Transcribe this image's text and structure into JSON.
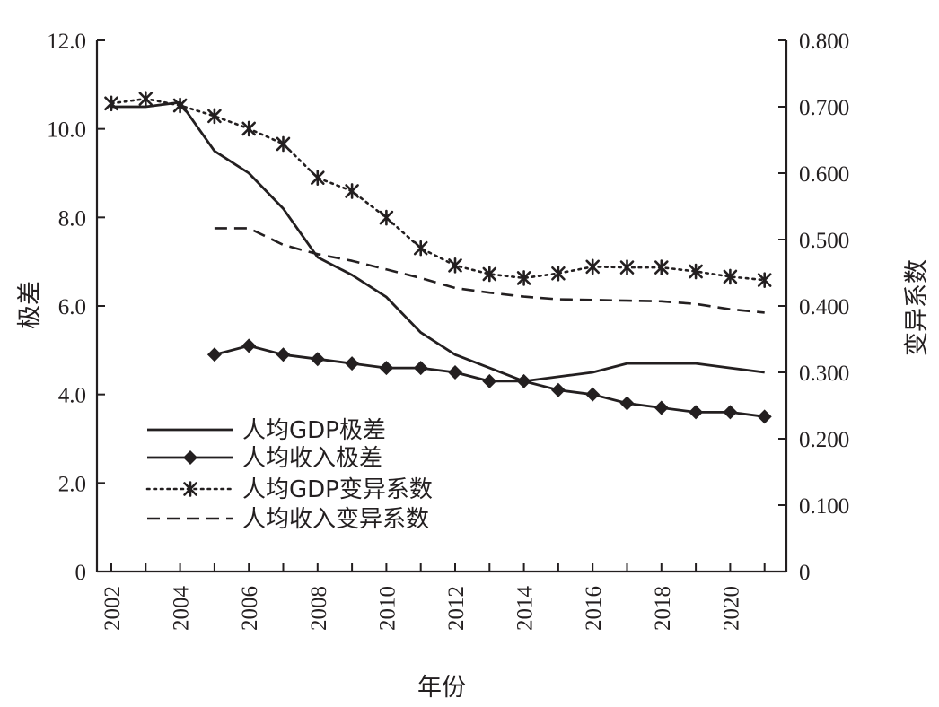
{
  "chart_data": {
    "type": "line",
    "xlabel": "年份",
    "ylabel_left": "极差",
    "ylabel_right": "变异系数",
    "xlim": [
      2002,
      2021
    ],
    "ylim_left": [
      0,
      12
    ],
    "ylim_right": [
      0,
      0.8
    ],
    "x_tick_labels": [
      "2002",
      "2004",
      "2006",
      "2008",
      "2010",
      "2012",
      "2014",
      "2016",
      "2018",
      "2020"
    ],
    "y_left_ticks": [
      {
        "value": 0,
        "label": "0"
      },
      {
        "value": 2,
        "label": "2.0"
      },
      {
        "value": 4,
        "label": "4.0"
      },
      {
        "value": 6,
        "label": "6.0"
      },
      {
        "value": 8,
        "label": "8.0"
      },
      {
        "value": 10,
        "label": "10.0"
      },
      {
        "value": 12,
        "label": "12.0"
      }
    ],
    "y_right_ticks": [
      {
        "value": 0,
        "label": "0"
      },
      {
        "value": 0.1,
        "label": "0.100"
      },
      {
        "value": 0.2,
        "label": "0.200"
      },
      {
        "value": 0.3,
        "label": "0.300"
      },
      {
        "value": 0.4,
        "label": "0.400"
      },
      {
        "value": 0.5,
        "label": "0.500"
      },
      {
        "value": 0.6,
        "label": "0.600"
      },
      {
        "value": 0.7,
        "label": "0.700"
      },
      {
        "value": 0.8,
        "label": "0.800"
      }
    ],
    "legend_position": "bottom-left",
    "color": "#231f20",
    "series": [
      {
        "id": "gdp-range",
        "name": "人均GDP极差",
        "axis": "left",
        "style": "solid",
        "marker": "none",
        "x": [
          2002,
          2003,
          2004,
          2005,
          2006,
          2007,
          2008,
          2009,
          2010,
          2011,
          2012,
          2013,
          2014,
          2015,
          2016,
          2017,
          2018,
          2019,
          2020,
          2021
        ],
        "values": [
          10.5,
          10.5,
          10.6,
          9.5,
          9.0,
          8.2,
          7.1,
          6.7,
          6.2,
          5.4,
          4.9,
          4.6,
          4.3,
          4.4,
          4.5,
          4.7,
          4.7,
          4.7,
          4.6,
          4.5
        ]
      },
      {
        "id": "income-range",
        "name": "人均收入极差",
        "axis": "left",
        "style": "solid",
        "marker": "diamond",
        "x": [
          2005,
          2006,
          2007,
          2008,
          2009,
          2010,
          2011,
          2012,
          2013,
          2014,
          2015,
          2016,
          2017,
          2018,
          2019,
          2020,
          2021
        ],
        "values": [
          4.9,
          5.1,
          4.9,
          4.8,
          4.7,
          4.6,
          4.6,
          4.5,
          4.3,
          4.3,
          4.1,
          4.0,
          3.8,
          3.7,
          3.6,
          3.6,
          3.5
        ]
      },
      {
        "id": "gdp-cv",
        "name": "人均GDP变异系数",
        "axis": "right",
        "style": "dotted",
        "marker": "asterisk",
        "x": [
          2002,
          2003,
          2004,
          2005,
          2006,
          2007,
          2008,
          2009,
          2010,
          2011,
          2012,
          2013,
          2014,
          2015,
          2016,
          2017,
          2018,
          2019,
          2020,
          2021
        ],
        "values": [
          0.705,
          0.712,
          0.702,
          0.686,
          0.667,
          0.644,
          0.593,
          0.573,
          0.533,
          0.487,
          0.461,
          0.448,
          0.442,
          0.449,
          0.459,
          0.458,
          0.458,
          0.452,
          0.444,
          0.439
        ]
      },
      {
        "id": "income-cv",
        "name": "人均收入变异系数",
        "axis": "right",
        "style": "dashed",
        "marker": "none",
        "x": [
          2005,
          2006,
          2007,
          2008,
          2009,
          2010,
          2011,
          2012,
          2013,
          2014,
          2015,
          2016,
          2017,
          2018,
          2019,
          2020,
          2021
        ],
        "values": [
          0.517,
          0.517,
          0.492,
          0.478,
          0.468,
          0.455,
          0.442,
          0.427,
          0.42,
          0.414,
          0.41,
          0.409,
          0.408,
          0.407,
          0.403,
          0.395,
          0.39
        ]
      }
    ]
  }
}
